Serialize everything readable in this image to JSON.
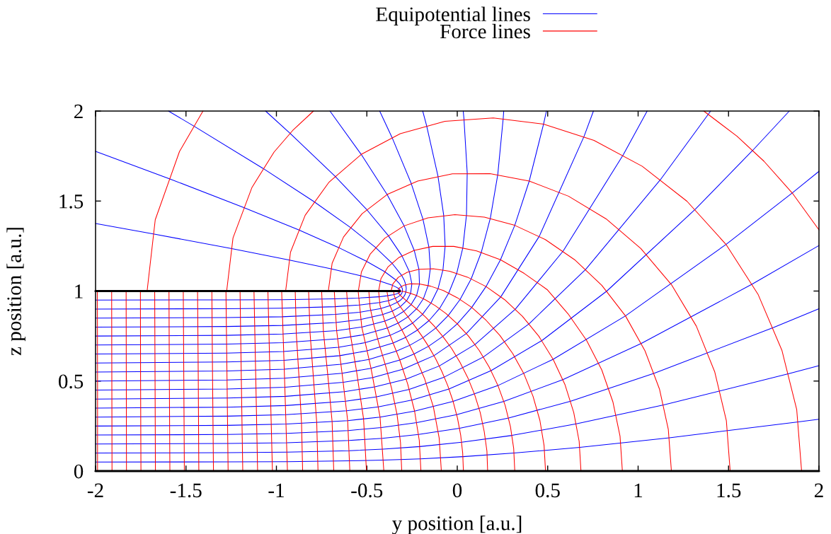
{
  "chart_data": {
    "type": "line",
    "xlabel": "y position [a.u.]",
    "ylabel": "z position [a.u.]",
    "xlim": [
      -2,
      2
    ],
    "ylim": [
      0,
      2
    ],
    "xticks": [
      -2,
      -1.5,
      -1,
      -0.5,
      0,
      0.5,
      1,
      1.5,
      2
    ],
    "yticks": [
      0,
      0.5,
      1,
      1.5,
      2
    ],
    "legend": "top",
    "line_style": "solid",
    "series": [
      {
        "name": "Equipotential lines",
        "color": "#0000ff",
        "x": [
          -2,
          -1.267,
          -0.939,
          -0.594,
          -0.407,
          -0.203,
          0.032,
          0.314,
          0.678,
          1.173,
          1.886,
          2
        ],
        "values": [
          0.05,
          0.051,
          0.052,
          0.057,
          0.061,
          0.068,
          0.08,
          0.1,
          0.132,
          0.185,
          0.273,
          0.288
        ]
      },
      {
        "color": "#0000ff",
        "x": [
          -2,
          -1.268,
          -0.94,
          -0.596,
          -0.41,
          -0.207,
          0.024,
          0.303,
          0.658,
          1.141,
          1.834,
          2
        ],
        "values": [
          0.1,
          0.102,
          0.105,
          0.113,
          0.122,
          0.136,
          0.16,
          0.198,
          0.262,
          0.367,
          0.541,
          0.585
        ]
      },
      {
        "color": "#0000ff",
        "x": [
          -2,
          -1.268,
          -0.941,
          -0.598,
          -0.414,
          -0.214,
          0.013,
          0.284,
          0.627,
          1.089,
          1.749,
          2
        ],
        "values": [
          0.15,
          0.153,
          0.157,
          0.17,
          0.182,
          0.203,
          0.238,
          0.295,
          0.388,
          0.543,
          0.798,
          0.902
        ]
      },
      {
        "color": "#0000ff",
        "x": [
          -2,
          -1.269,
          -0.942,
          -0.602,
          -0.42,
          -0.224,
          -0.003,
          0.258,
          0.584,
          1.018,
          1.632,
          2
        ],
        "values": [
          0.2,
          0.203,
          0.209,
          0.225,
          0.242,
          0.269,
          0.313,
          0.387,
          0.508,
          0.709,
          1.039,
          1.253
        ]
      },
      {
        "color": "#0000ff",
        "x": [
          -2,
          -1.269,
          -0.944,
          -0.606,
          -0.427,
          -0.236,
          -0.023,
          0.225,
          0.53,
          0.93,
          1.486,
          1.852,
          2
        ],
        "values": [
          0.25,
          0.254,
          0.261,
          0.28,
          0.3,
          0.333,
          0.387,
          0.475,
          0.621,
          0.862,
          1.259,
          1.545,
          1.665
        ]
      },
      {
        "color": "#0000ff",
        "x": [
          -2,
          -1.27,
          -0.946,
          -0.611,
          -0.436,
          -0.249,
          -0.046,
          0.187,
          0.468,
          0.827,
          1.316,
          1.634,
          1.836
        ],
        "values": [
          0.3,
          0.305,
          0.313,
          0.335,
          0.357,
          0.395,
          0.456,
          0.558,
          0.725,
          1.0,
          1.454,
          1.782,
          2
        ]
      },
      {
        "color": "#0000ff",
        "x": [
          -2,
          -1.271,
          -0.948,
          -0.617,
          -0.445,
          -0.265,
          -0.072,
          0.145,
          0.397,
          0.711,
          1.125,
          1.401
        ],
        "values": [
          0.35,
          0.355,
          0.364,
          0.388,
          0.413,
          0.454,
          0.522,
          0.634,
          0.818,
          1.121,
          1.621,
          2
        ]
      },
      {
        "color": "#0000ff",
        "x": [
          -2,
          -1.271,
          -0.95,
          -0.623,
          -0.456,
          -0.282,
          -0.099,
          0.098,
          0.321,
          0.586,
          0.918,
          1.05
        ],
        "values": [
          0.4,
          0.406,
          0.415,
          0.441,
          0.468,
          0.511,
          0.584,
          0.703,
          0.899,
          1.223,
          1.757,
          2
        ]
      },
      {
        "color": "#0000ff",
        "x": [
          -2,
          -1.272,
          -0.952,
          -0.63,
          -0.466,
          -0.3,
          -0.129,
          0.05,
          0.241,
          0.454,
          0.701,
          0.753
        ],
        "values": [
          0.45,
          0.456,
          0.466,
          0.493,
          0.52,
          0.566,
          0.641,
          0.764,
          0.968,
          1.305,
          1.859,
          2
        ]
      },
      {
        "color": "#0000ff",
        "x": [
          -2,
          -1.273,
          -0.955,
          -0.637,
          -0.477,
          -0.318,
          -0.239,
          -0.159,
          -0.08,
          0,
          0.08,
          0.159,
          0.239,
          0.318,
          0.398,
          0.477,
          0.493
        ],
        "values": [
          0.5,
          0.506,
          0.516,
          0.543,
          0.571,
          0.617,
          0.65,
          0.693,
          0.748,
          0.818,
          0.909,
          1.025,
          1.174,
          1.365,
          1.611,
          1.927,
          2
        ]
      },
      {
        "color": "#0000ff",
        "x": [
          -2,
          -1.274,
          -0.957,
          -0.643,
          -0.489,
          -0.337,
          -0.262,
          -0.189,
          -0.118,
          -0.05,
          0.016,
          0.077,
          0.133,
          0.183,
          0.224,
          0.254,
          0.257
        ],
        "values": [
          0.55,
          0.556,
          0.566,
          0.593,
          0.62,
          0.666,
          0.699,
          0.741,
          0.795,
          0.864,
          0.954,
          1.068,
          1.216,
          1.405,
          1.647,
          1.959,
          2
        ]
      },
      {
        "color": "#0000ff",
        "x": [
          -2,
          -1.275,
          -0.96,
          -0.65,
          -0.499,
          -0.355,
          -0.285,
          -0.219,
          -0.156,
          -0.098,
          -0.047,
          -0.003,
          0.031,
          0.051,
          0.055,
          0.037,
          0.033
        ],
        "values": [
          0.6,
          0.606,
          0.615,
          0.641,
          0.668,
          0.711,
          0.743,
          0.784,
          0.836,
          0.903,
          0.989,
          1.099,
          1.241,
          1.423,
          1.657,
          1.957,
          2
        ]
      },
      {
        "color": "#0000ff",
        "x": [
          -2,
          -1.276,
          -0.962,
          -0.656,
          -0.51,
          -0.371,
          -0.307,
          -0.247,
          -0.192,
          -0.145,
          -0.106,
          -0.079,
          -0.067,
          -0.075,
          -0.107,
          -0.17,
          -0.191
        ],
        "values": [
          0.65,
          0.655,
          0.664,
          0.688,
          0.713,
          0.754,
          0.784,
          0.822,
          0.871,
          0.934,
          1.014,
          1.118,
          1.25,
          1.421,
          1.64,
          1.921,
          2
        ]
      },
      {
        "color": "#0000ff",
        "x": [
          -2,
          -1.277,
          -0.964,
          -0.662,
          -0.519,
          -0.387,
          -0.327,
          -0.273,
          -0.225,
          -0.187,
          -0.161,
          -0.149,
          -0.157,
          -0.19,
          -0.255,
          -0.361,
          -0.429
        ],
        "values": [
          0.7,
          0.705,
          0.713,
          0.735,
          0.757,
          0.795,
          0.822,
          0.856,
          0.901,
          0.958,
          1.031,
          1.125,
          1.245,
          1.4,
          1.599,
          1.854,
          2
        ]
      },
      {
        "color": "#0000ff",
        "x": [
          -2,
          -1.277,
          -0.966,
          -0.667,
          -0.528,
          -0.401,
          -0.345,
          -0.296,
          -0.255,
          -0.225,
          -0.209,
          -0.212,
          -0.238,
          -0.294,
          -0.388,
          -0.531,
          -0.704
        ],
        "values": [
          0.75,
          0.754,
          0.761,
          0.78,
          0.8,
          0.833,
          0.856,
          0.887,
          0.925,
          0.975,
          1.039,
          1.121,
          1.226,
          1.362,
          1.536,
          1.759,
          2
        ]
      },
      {
        "color": "#0000ff",
        "x": [
          -2,
          -1.278,
          -0.968,
          -0.671,
          -0.535,
          -0.413,
          -0.36,
          -0.315,
          -0.28,
          -0.258,
          -0.251,
          -0.265,
          -0.306,
          -0.382,
          -0.501,
          -0.677,
          -0.925,
          -1.06
        ],
        "values": [
          0.8,
          0.803,
          0.809,
          0.825,
          0.842,
          0.869,
          0.888,
          0.913,
          0.946,
          0.987,
          1.04,
          1.108,
          1.196,
          1.309,
          1.453,
          1.639,
          1.877,
          2
        ]
      },
      {
        "color": "#0000ff",
        "x": [
          -2,
          -1.278,
          -0.969,
          -0.675,
          -0.541,
          -0.423,
          -0.373,
          -0.331,
          -0.314,
          -0.3,
          -0.29,
          -0.284,
          -0.282,
          -0.285,
          -0.293,
          -0.308,
          -0.362,
          -0.453,
          -0.592,
          -0.794,
          -1.075,
          -1.459,
          -1.597
        ],
        "values": [
          0.85,
          0.853,
          0.857,
          0.87,
          0.882,
          0.903,
          0.918,
          0.938,
          0.949,
          0.963,
          0.978,
          0.995,
          1.014,
          1.036,
          1.06,
          1.088,
          1.156,
          1.243,
          1.354,
          1.498,
          1.682,
          1.918,
          2
        ]
      },
      {
        "color": "#0000ff",
        "x": [
          -2,
          -1.279,
          -0.97,
          -0.678,
          -0.545,
          -0.43,
          -0.382,
          -0.343,
          -0.327,
          -0.315,
          -0.307,
          -0.303,
          -0.303,
          -0.309,
          -0.321,
          -0.34,
          -0.402,
          -0.505,
          -0.659,
          -0.879,
          -1.185,
          -1.6,
          -2
        ],
        "values": [
          0.9,
          0.902,
          0.905,
          0.913,
          0.922,
          0.936,
          0.946,
          0.96,
          0.968,
          0.977,
          0.987,
          0.998,
          1.011,
          1.026,
          1.043,
          1.062,
          1.108,
          1.167,
          1.243,
          1.341,
          1.466,
          1.627,
          1.776
        ]
      },
      {
        "color": "#0000ff",
        "x": [
          -2,
          -1.279,
          -0.971,
          -0.679,
          -0.548,
          -0.434,
          -0.387,
          -0.35,
          -0.335,
          -0.324,
          -0.317,
          -0.314,
          -0.316,
          -0.324,
          -0.338,
          -0.359,
          -0.427,
          -0.536,
          -0.699,
          -0.932,
          -1.252,
          -1.686,
          -2
        ],
        "values": [
          0.95,
          0.951,
          0.952,
          0.957,
          0.961,
          0.968,
          0.974,
          0.98,
          0.984,
          0.989,
          0.994,
          1.0,
          1.006,
          1.014,
          1.022,
          1.032,
          1.055,
          1.085,
          1.124,
          1.173,
          1.237,
          1.318,
          1.375
        ]
      },
      {
        "name": "Force lines",
        "color": "#ff0000",
        "x": [
          -1.989,
          -1.989,
          -1.99
        ],
        "values": [
          0,
          0.501,
          1
        ]
      },
      {
        "color": "#ff0000",
        "x": [
          -1.909,
          -1.91,
          -1.911
        ],
        "values": [
          0,
          0.501,
          1
        ]
      },
      {
        "color": "#ff0000",
        "x": [
          -1.829,
          -1.83,
          -1.831
        ],
        "values": [
          0,
          0.501,
          1
        ]
      },
      {
        "color": "#ff0000",
        "x": [
          -1.749,
          -1.751,
          -1.752
        ],
        "values": [
          0,
          0.501,
          1
        ]
      },
      {
        "color": "#ff0000",
        "x": [
          -1.669,
          -1.671,
          -1.673
        ],
        "values": [
          0,
          0.502,
          1
        ]
      },
      {
        "color": "#ff0000",
        "x": [
          -1.589,
          -1.592,
          -1.594
        ],
        "values": [
          0,
          0.502,
          1
        ]
      },
      {
        "color": "#ff0000",
        "x": [
          -1.509,
          -1.512,
          -1.515
        ],
        "values": [
          0,
          0.503,
          1
        ]
      },
      {
        "color": "#ff0000",
        "x": [
          -1.429,
          -1.432,
          -1.436
        ],
        "values": [
          0,
          0.504,
          1
        ]
      },
      {
        "color": "#ff0000",
        "x": [
          -1.348,
          -1.353,
          -1.357
        ],
        "values": [
          0,
          0.505,
          1
        ]
      },
      {
        "color": "#ff0000",
        "x": [
          -1.267,
          -1.273,
          -1.279,
          -1.275,
          -1.24,
          -1.135,
          -1.013,
          -0.91,
          -0.795
        ],
        "values": [
          0,
          0.506,
          1,
          1,
          1.295,
          1.576,
          1.772,
          1.892,
          2
        ]
      },
      {
        "color": "#ff0000",
        "x": [
          -1.186,
          -1.194,
          -1.201
        ],
        "values": [
          0,
          0.507,
          1
        ]
      },
      {
        "color": "#ff0000",
        "x": [
          -1.104,
          -1.114,
          -1.124
        ],
        "values": [
          0,
          0.51,
          1
        ]
      },
      {
        "color": "#ff0000",
        "x": [
          -1.022,
          -1.035,
          -1.047
        ],
        "values": [
          0,
          0.512,
          1
        ]
      },
      {
        "color": "#ff0000",
        "x": [
          -0.939,
          -0.955,
          -0.971
        ],
        "values": [
          0,
          0.516,
          1
        ]
      },
      {
        "color": "#ff0000",
        "x": [
          -0.855,
          -0.861,
          -0.875,
          -0.89,
          -0.896
        ],
        "values": [
          0,
          0.264,
          0.52,
          0.764,
          1
        ]
      },
      {
        "color": "#ff0000",
        "x": [
          -0.77,
          -0.777,
          -0.796,
          -0.814,
          -0.822
        ],
        "values": [
          0,
          0.268,
          0.526,
          0.768,
          1
        ]
      },
      {
        "color": "#ff0000",
        "x": [
          -0.683,
          -0.692,
          -0.716,
          -0.74,
          -0.75
        ],
        "values": [
          0,
          0.274,
          0.534,
          0.774,
          1
        ]
      },
      {
        "color": "#ff0000",
        "x": [
          -0.594,
          -0.606,
          -0.637,
          -0.667,
          -0.68
        ],
        "values": [
          0,
          0.28,
          0.543,
          0.78,
          1
        ]
      },
      {
        "color": "#ff0000",
        "x": [
          -0.502,
          -0.518,
          -0.557,
          -0.596,
          -0.612
        ],
        "values": [
          0,
          0.289,
          0.555,
          0.789,
          1
        ]
      },
      {
        "color": "#ff0000",
        "x": [
          -0.406,
          -0.427,
          -0.477,
          -0.528,
          -0.548,
          -0.547,
          -0.53,
          -0.481,
          -0.401,
          -0.294,
          -0.162,
          -0.013,
          0.15,
          0.318,
          0.487,
          0.649,
          0.799,
          0.93,
          1.038,
          1.118,
          1.167,
          1.184
        ],
        "values": [
          0,
          0.3,
          0.571,
          0.8,
          1,
          1,
          1.106,
          1.206,
          1.293,
          1.362,
          1.407,
          1.424,
          1.411,
          1.365,
          1.286,
          1.174,
          1.032,
          0.862,
          0.668,
          0.456,
          0.231,
          0
        ]
      },
      {
        "color": "#ff0000",
        "x": [
          -0.307,
          -0.314,
          -0.333,
          -0.363,
          -0.398,
          -0.433,
          -0.462,
          -0.482,
          -0.489
        ],
        "values": [
          0,
          0.16,
          0.314,
          0.459,
          0.591,
          0.709,
          0.814,
          0.91,
          1
        ]
      },
      {
        "color": "#ff0000",
        "x": [
          -0.201,
          -0.21,
          -0.236,
          -0.274,
          -0.318,
          -0.363,
          -0.401,
          -0.427,
          -0.435,
          -0.435,
          -0.422,
          -0.384,
          -0.322,
          -0.238,
          -0.136,
          -0.019,
          0.107,
          0.239,
          0.37,
          0.497,
          0.613,
          0.715,
          0.799,
          0.861,
          0.9,
          0.913
        ],
        "values": [
          0,
          0.17,
          0.333,
          0.483,
          0.617,
          0.733,
          0.833,
          0.92,
          1,
          1,
          1.069,
          1.133,
          1.187,
          1.226,
          1.248,
          1.248,
          1.223,
          1.174,
          1.098,
          1.008,
          0.873,
          0.726,
          0.562,
          0.383,
          0.194,
          0
        ]
      },
      {
        "color": "#ff0000",
        "x": [
          -0.088,
          -0.1,
          -0.132,
          -0.181,
          -0.239,
          -0.296,
          -0.345,
          -0.378,
          -0.389
        ],
        "values": [
          0,
          0.183,
          0.356,
          0.514,
          0.65,
          0.764,
          0.856,
          0.933,
          1
        ]
      },
      {
        "color": "#ff0000",
        "x": [
          0.034,
          0.03,
          0.019,
          0.001,
          -0.023,
          -0.052,
          -0.085,
          -0.121,
          -0.159,
          -0.197,
          -0.233,
          -0.266,
          -0.296,
          -0.32,
          -0.338,
          -0.349,
          -0.352
        ],
        "values": [
          0,
          0.1,
          0.199,
          0.295,
          0.387,
          0.473,
          0.553,
          0.627,
          0.693,
          0.752,
          0.803,
          0.848,
          0.887,
          0.92,
          0.949,
          0.975,
          1
        ]
      },
      {
        "color": "#ff0000",
        "x": [
          0.168,
          0.164,
          0.149,
          0.127,
          0.096,
          0.058,
          0.015,
          -0.031,
          -0.08,
          -0.128,
          -0.174,
          -0.217,
          -0.255,
          -0.286,
          -0.309,
          -0.323,
          -0.327
        ],
        "values": [
          0,
          0.111,
          0.22,
          0.325,
          0.425,
          0.519,
          0.604,
          0.681,
          0.748,
          0.806,
          0.854,
          0.894,
          0.925,
          0.95,
          0.97,
          0.986,
          1
        ]
      },
      {
        "color": "#ff0000",
        "x": [
          0.318,
          0.312,
          0.294,
          0.265,
          0.225,
          0.177,
          0.122,
          0.062,
          0,
          -0.062,
          -0.122,
          -0.177,
          -0.225,
          -0.265,
          -0.294,
          -0.312,
          -0.318
        ],
        "values": [
          0,
          0.125,
          0.247,
          0.364,
          0.475,
          0.577,
          0.669,
          0.75,
          0.818,
          0.875,
          0.919,
          0.952,
          0.975,
          0.989,
          0.997,
          1.0,
          1
        ]
      },
      {
        "color": "#ff0000",
        "x": [
          0.488,
          0.48,
          0.457,
          0.419,
          0.369,
          0.307,
          0.236,
          0.159,
          0.08,
          0,
          -0.077,
          -0.147,
          -0.209,
          -0.26,
          -0.298,
          -0.321,
          -0.329
        ],
        "values": [
          0,
          0.142,
          0.281,
          0.415,
          0.539,
          0.652,
          0.753,
          0.838,
          0.909,
          0.963,
          1.003,
          1.027,
          1.039,
          1.04,
          1.031,
          1.017,
          1
        ]
      },
      {
        "color": "#ff0000",
        "x": [
          0.684,
          0.674,
          0.644,
          0.596,
          0.53,
          0.451,
          0.36,
          0.262,
          0.159,
          0.057,
          -0.042,
          -0.132,
          -0.212,
          -0.277,
          -0.326,
          -0.356,
          -0.366
        ],
        "values": [
          0,
          0.165,
          0.326,
          0.479,
          0.621,
          0.749,
          0.86,
          0.952,
          1.025,
          1.077,
          1.11,
          1.124,
          1.121,
          1.104,
          1.076,
          1.04,
          1
        ]
      },
      {
        "color": "#ff0000",
        "x": [
          1.509,
          1.488,
          1.424,
          1.322,
          1.184,
          1.015,
          0.823,
          0.615,
          0.398,
          0.181,
          -0.027,
          -0.219,
          -0.388,
          -0.526,
          -0.629,
          -0.692,
          -0.713
        ],
        "values": [
          0,
          0.279,
          0.55,
          0.805,
          1.036,
          1.236,
          1.401,
          1.527,
          1.611,
          1.652,
          1.651,
          1.611,
          1.536,
          1.43,
          1.3,
          1.154,
          1
        ]
      },
      {
        "color": "#ff0000",
        "x": [
          1.904,
          1.877,
          1.795,
          1.664,
          1.486,
          1.27,
          1.023,
          0.756,
          0.477,
          0.199,
          -0.068,
          -0.315,
          -0.531,
          -0.709,
          -0.841,
          -0.922,
          -0.949
        ],
        "values": [
          0,
          0.341,
          0.671,
          0.98,
          1.259,
          1.499,
          1.693,
          1.837,
          1.927,
          1.962,
          1.943,
          1.874,
          1.759,
          1.605,
          1.421,
          1.216,
          1
        ]
      },
      {
        "color": "#ff0000",
        "x": [
          2,
          1.852,
          1.696,
          1.547,
          1.363
        ],
        "values": [
          1.34,
          1.545,
          1.721,
          1.86,
          2
        ]
      },
      {
        "color": "#ff0000",
        "x": [
          -1.406,
          -1.536,
          -1.67,
          -1.715
        ],
        "values": [
          2,
          1.775,
          1.396,
          1
        ]
      },
      {
        "color": "#000000",
        "x": [
          -2,
          -0.318
        ],
        "values": [
          1,
          1
        ]
      },
      {
        "color": "#000000",
        "x": [
          -2,
          2
        ],
        "values": [
          0,
          0
        ]
      }
    ]
  }
}
